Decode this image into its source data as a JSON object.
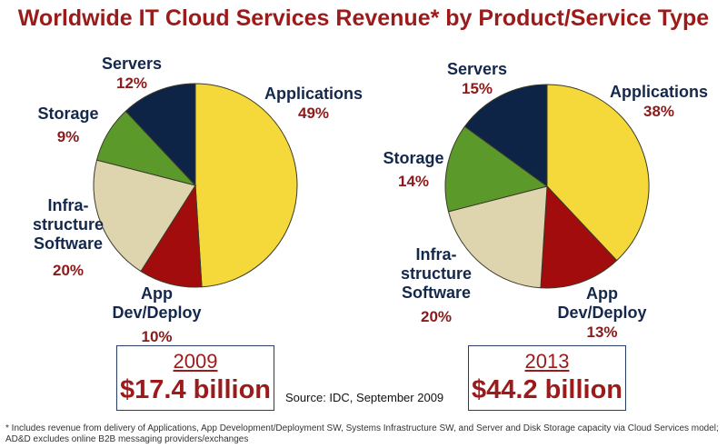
{
  "chart_data": [
    {
      "type": "pie",
      "year": "2009",
      "total": "$17.4 billion",
      "slices": [
        {
          "label": "Applications",
          "value": 49,
          "display": "49%",
          "color": "#f5d93a"
        },
        {
          "label": "App Dev/Deploy",
          "value": 10,
          "display": "10%",
          "color": "#a30c0c"
        },
        {
          "label": "Infra-structure Software",
          "value": 20,
          "display": "20%",
          "color": "#ded4ae"
        },
        {
          "label": "Storage",
          "value": 9,
          "display": "9%",
          "color": "#5b9a2a"
        },
        {
          "label": "Servers",
          "value": 12,
          "display": "12%",
          "color": "#0e2447"
        }
      ]
    },
    {
      "type": "pie",
      "year": "2013",
      "total": "$44.2 billion",
      "slices": [
        {
          "label": "Applications",
          "value": 38,
          "display": "38%",
          "color": "#f5d93a"
        },
        {
          "label": "App Dev/Deploy",
          "value": 13,
          "display": "13%",
          "color": "#a30c0c"
        },
        {
          "label": "Infra-structure Software",
          "value": 20,
          "display": "20%",
          "color": "#ded4ae"
        },
        {
          "label": "Storage",
          "value": 14,
          "display": "14%",
          "color": "#5b9a2a"
        },
        {
          "label": "Servers",
          "value": 15,
          "display": "15%",
          "color": "#0e2447"
        }
      ]
    }
  ],
  "title": "Worldwide IT Cloud Services Revenue* by Product/Service Type",
  "labels": {
    "applications": "Applications",
    "app": "App",
    "devdeploy": "Dev/Deploy",
    "infra1": "Infra-",
    "infra2": "structure",
    "infra3": "Software",
    "storage": "Storage",
    "servers": "Servers"
  },
  "source": "Source: IDC, September 2009",
  "footnote": "* Includes revenue from delivery of Applications, App Development/Deployment SW, Systems Infrastructure SW, and Server and Disk Storage capacity via Cloud Services model; AD&D excludes online B2B messaging providers/exchanges"
}
